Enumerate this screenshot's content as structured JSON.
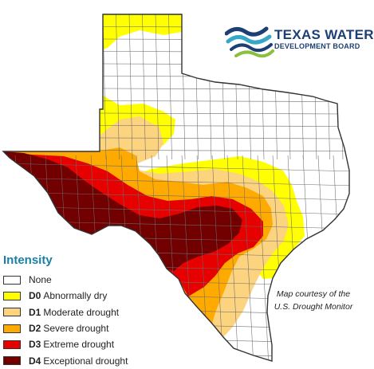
{
  "logo": {
    "line1": "TEXAS WATER",
    "line2": "DEVELOPMENT BOARD",
    "colors": {
      "navy": "#1e3f74",
      "teal": "#35a7c9",
      "green": "#8bbf3f"
    }
  },
  "legend": {
    "title": "Intensity",
    "items": [
      {
        "code": "",
        "label": "None",
        "color": "#ffffff"
      },
      {
        "code": "D0",
        "label": "Abnormally dry",
        "color": "#ffff00"
      },
      {
        "code": "D1",
        "label": "Moderate drought",
        "color": "#fcd37f"
      },
      {
        "code": "D2",
        "label": "Severe drought",
        "color": "#ffaa00"
      },
      {
        "code": "D3",
        "label": "Extreme drought",
        "color": "#e60000"
      },
      {
        "code": "D4",
        "label": "Exceptional drought",
        "color": "#730000"
      }
    ]
  },
  "credit": {
    "line1": "Map courtesy of the",
    "line2": "U.S. Drought Monitor"
  },
  "map": {
    "subject": "Texas drought intensity by county",
    "colors": {
      "outline": "#333333",
      "county_lines": "#6b6b6b",
      "accent": "#1a7fa6"
    }
  }
}
